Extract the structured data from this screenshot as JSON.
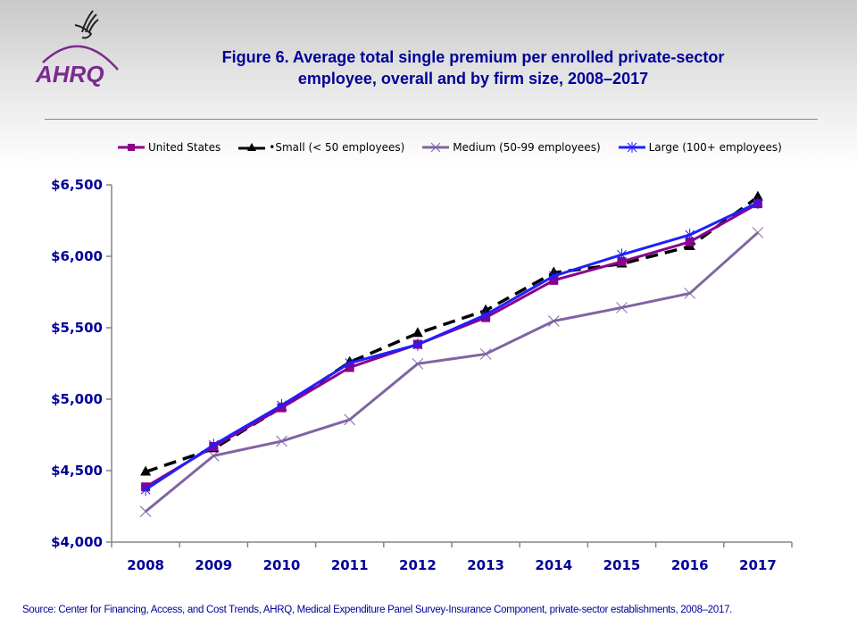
{
  "header": {
    "title_line1": "Figure 6. Average total single premium per enrolled private-sector",
    "title_line2": "employee, overall and by firm size, 2008–2017",
    "logo_text": "AHRQ"
  },
  "footer": {
    "source": "Source: Center for Financing, Access, and Cost Trends, AHRQ, Medical Expenditure Panel Survey-Insurance Component, private-sector establishments, 2008–2017."
  },
  "chart_data": {
    "type": "line",
    "title": "Figure 6. Average total single premium per enrolled private-sector employee, overall and by firm size, 2008–2017",
    "xlabel": "",
    "ylabel": "",
    "x": [
      "2008",
      "2009",
      "2010",
      "2011",
      "2012",
      "2013",
      "2014",
      "2015",
      "2016",
      "2017"
    ],
    "ylim": [
      4000,
      6500
    ],
    "yticks": [
      4000,
      4500,
      5000,
      5500,
      6000,
      6500
    ],
    "ytick_labels": [
      "$4,000",
      "$4,500",
      "$5,000",
      "$5,500",
      "$6,000",
      "$6,500"
    ],
    "grid": false,
    "legend_position": "top",
    "series": [
      {
        "name": "United States",
        "color": "#8B008B",
        "marker": "square",
        "dash": "solid",
        "values": [
          4386,
          4669,
          4940,
          5222,
          5384,
          5571,
          5832,
          5963,
          6101,
          6368
        ]
      },
      {
        "name": "Small (< 50 employees)",
        "color": "#000000",
        "marker": "triangle",
        "dash": "dashed",
        "values": [
          4491,
          4654,
          4943,
          5259,
          5461,
          5621,
          5885,
          5947,
          6069,
          6415
        ]
      },
      {
        "name": "Medium (50-99 employees)",
        "color": "#8064A2",
        "marker": "x",
        "dash": "solid",
        "values": [
          4214,
          4604,
          4706,
          4857,
          5248,
          5316,
          5547,
          5641,
          5741,
          6166
        ]
      },
      {
        "name": "Large (100+ employees)",
        "color": "#1F1FFF",
        "marker": "star",
        "dash": "solid",
        "values": [
          4367,
          4680,
          4957,
          5253,
          5382,
          5591,
          5862,
          6011,
          6150,
          6375
        ]
      }
    ],
    "legend_labels": [
      "United States",
      "•Small (< 50 employees)",
      "Medium (50-99 employees)",
      "Large (100+ employees)"
    ]
  }
}
